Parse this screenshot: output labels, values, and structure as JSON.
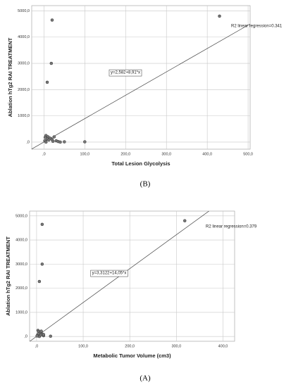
{
  "chart_data": [
    {
      "type": "scatter",
      "caption": "(B)",
      "ylabel": "Ablation hTg2 RAI TREATMENT",
      "xlabel": "Total Lesion Glycolysis",
      "annotation": "R2 linear regression=0.341",
      "equation": "y=2,582+8,91*x",
      "fit": {
        "intercept": 2.582,
        "slope": 8.91
      },
      "x": [
        430,
        20,
        18,
        8,
        5,
        10,
        15,
        20,
        25,
        30,
        35,
        40,
        2,
        8,
        12,
        50,
        100,
        5,
        22,
        3
      ],
      "values": [
        4800,
        4650,
        3000,
        2280,
        250,
        200,
        150,
        100,
        200,
        50,
        20,
        0,
        50,
        120,
        80,
        10,
        10,
        0,
        30,
        180
      ],
      "color": "#777777",
      "grid": true,
      "xlim": [
        -30,
        505
      ],
      "ylim": [
        -270,
        5200
      ],
      "xticks": [
        {
          "value": 0,
          "label": ",0"
        },
        {
          "value": 100,
          "label": "100,0"
        },
        {
          "value": 200,
          "label": "200,0"
        },
        {
          "value": 300,
          "label": "300,0"
        },
        {
          "value": 400,
          "label": "400,0"
        },
        {
          "value": 500,
          "label": "500,0"
        }
      ],
      "yticks": [
        {
          "value": 0,
          "label": ",0"
        },
        {
          "value": 1000,
          "label": "1000,0"
        },
        {
          "value": 2000,
          "label": "2000,0"
        },
        {
          "value": 3000,
          "label": "3000,0"
        },
        {
          "value": 4000,
          "label": "4000,0"
        },
        {
          "value": 5000,
          "label": "5000,0"
        }
      ]
    },
    {
      "type": "scatter",
      "caption": "(A)",
      "ylabel": "Ablation hTg2 RAI TREATMENT",
      "xlabel": "Metabolic Tumor Volume (cm3)",
      "annotation": "R2 linear regression=0.379",
      "equation": "y=3,3122+14,05*x",
      "fit": {
        "intercept": 3.3122,
        "slope": 14.05
      },
      "x": [
        318,
        12,
        12,
        6,
        3,
        5,
        8,
        10,
        12,
        15,
        2,
        4,
        6,
        30,
        15,
        1,
        9
      ],
      "values": [
        4800,
        4650,
        3000,
        2280,
        250,
        200,
        150,
        220,
        100,
        30,
        50,
        120,
        0,
        10,
        80,
        20,
        60
      ],
      "color": "#777777",
      "grid": true,
      "xlim": [
        -15,
        425
      ],
      "ylim": [
        -200,
        5200
      ],
      "xticks": [
        {
          "value": 0,
          "label": ",0"
        },
        {
          "value": 100,
          "label": "100,0"
        },
        {
          "value": 200,
          "label": "200,0"
        },
        {
          "value": 300,
          "label": "300,0"
        },
        {
          "value": 400,
          "label": "400,0"
        }
      ],
      "yticks": [
        {
          "value": 0,
          "label": ",0"
        },
        {
          "value": 1000,
          "label": "1000,0"
        },
        {
          "value": 2000,
          "label": "2000,0"
        },
        {
          "value": 3000,
          "label": "3000,0"
        },
        {
          "value": 4000,
          "label": "4000,0"
        },
        {
          "value": 5000,
          "label": "5000,0"
        }
      ]
    }
  ]
}
